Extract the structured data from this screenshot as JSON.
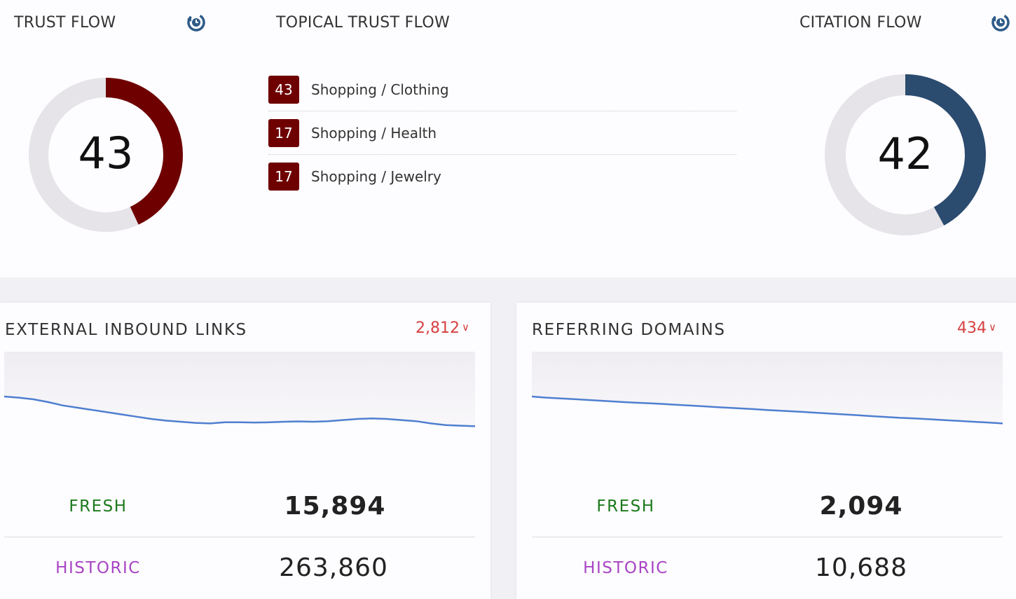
{
  "trust_flow": {
    "title": "TRUST FLOW",
    "value": 43,
    "max": 100,
    "color": "#6e0000",
    "icon": "history-icon"
  },
  "topical_trust_flow": {
    "title": "TOPICAL TRUST FLOW",
    "topics": [
      {
        "score": "43",
        "label": "Shopping / Clothing"
      },
      {
        "score": "17",
        "label": "Shopping / Health"
      },
      {
        "score": "17",
        "label": "Shopping / Jewelry"
      }
    ]
  },
  "citation_flow": {
    "title": "CITATION FLOW",
    "value": 42,
    "max": 100,
    "color": "#2b4b6f",
    "icon": "history-icon"
  },
  "external_inbound_links": {
    "title": "EXTERNAL INBOUND LINKS",
    "count": "2,812",
    "fresh_label": "FRESH",
    "fresh_value": "15,894",
    "historic_label": "HISTORIC",
    "historic_value": "263,860",
    "trend": [
      0.6,
      0.59,
      0.575,
      0.55,
      0.52,
      0.5,
      0.48,
      0.46,
      0.44,
      0.42,
      0.4,
      0.385,
      0.375,
      0.365,
      0.36,
      0.37,
      0.37,
      0.368,
      0.37,
      0.375,
      0.378,
      0.375,
      0.38,
      0.39,
      0.4,
      0.405,
      0.4,
      0.39,
      0.38,
      0.36,
      0.345,
      0.34,
      0.335
    ]
  },
  "referring_domains": {
    "title": "REFERRING DOMAINS",
    "count": "434",
    "fresh_label": "FRESH",
    "fresh_value": "2,094",
    "historic_label": "HISTORIC",
    "historic_value": "10,688",
    "trend": [
      0.6,
      0.59,
      0.583,
      0.576,
      0.568,
      0.56,
      0.552,
      0.545,
      0.54,
      0.533,
      0.525,
      0.518,
      0.51,
      0.502,
      0.495,
      0.488,
      0.48,
      0.473,
      0.466,
      0.458,
      0.45,
      0.442,
      0.434,
      0.426,
      0.418,
      0.41,
      0.405,
      0.398,
      0.39,
      0.383,
      0.375,
      0.368,
      0.36
    ]
  }
}
